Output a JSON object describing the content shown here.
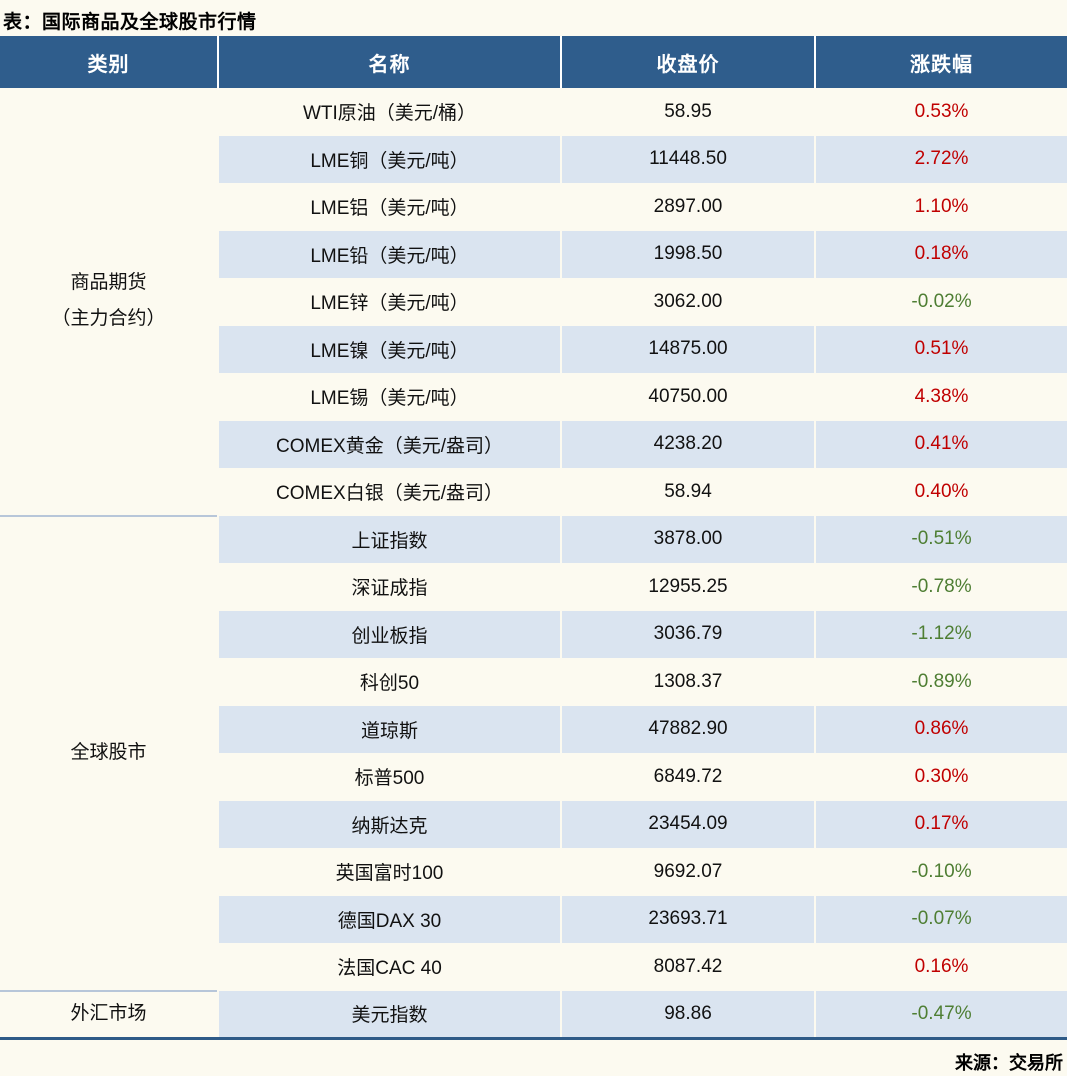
{
  "colors": {
    "page_bg": "#FCFAF0",
    "header_bg": "#2F5D8C",
    "alt_row_bg": "#DAE4F0",
    "up": "#C00000",
    "down": "#4E7E33",
    "table_bottom_border": "#2E5A87"
  },
  "chart_data": {
    "type": "table",
    "title": "表：国际商品及全球股市行情",
    "source": "来源：交易所",
    "columns": [
      "类别",
      "名称",
      "收盘价",
      "涨跌幅"
    ],
    "groups": [
      {
        "category_lines": [
          "商品期货",
          "（主力合约）"
        ],
        "row_count": 9
      },
      {
        "category_lines": [
          "全球股市"
        ],
        "row_count": 10
      },
      {
        "category_lines": [
          "外汇市场"
        ],
        "row_count": 1
      }
    ],
    "rows": [
      {
        "group": "商品期货（主力合约）",
        "name": "WTI原油（美元/桶）",
        "close": "58.95",
        "change": "0.53%",
        "direction": "up"
      },
      {
        "group": "商品期货（主力合约）",
        "name": "LME铜（美元/吨）",
        "close": "11448.50",
        "change": "2.72%",
        "direction": "up"
      },
      {
        "group": "商品期货（主力合约）",
        "name": "LME铝（美元/吨）",
        "close": "2897.00",
        "change": "1.10%",
        "direction": "up"
      },
      {
        "group": "商品期货（主力合约）",
        "name": "LME铅（美元/吨）",
        "close": "1998.50",
        "change": "0.18%",
        "direction": "up"
      },
      {
        "group": "商品期货（主力合约）",
        "name": "LME锌（美元/吨）",
        "close": "3062.00",
        "change": "-0.02%",
        "direction": "down"
      },
      {
        "group": "商品期货（主力合约）",
        "name": "LME镍（美元/吨）",
        "close": "14875.00",
        "change": "0.51%",
        "direction": "up"
      },
      {
        "group": "商品期货（主力合约）",
        "name": "LME锡（美元/吨）",
        "close": "40750.00",
        "change": "4.38%",
        "direction": "up"
      },
      {
        "group": "商品期货（主力合约）",
        "name": "COMEX黄金（美元/盎司）",
        "close": "4238.20",
        "change": "0.41%",
        "direction": "up"
      },
      {
        "group": "商品期货（主力合约）",
        "name": "COMEX白银（美元/盎司）",
        "close": "58.94",
        "change": "0.40%",
        "direction": "up"
      },
      {
        "group": "全球股市",
        "name": "上证指数",
        "close": "3878.00",
        "change": "-0.51%",
        "direction": "down"
      },
      {
        "group": "全球股市",
        "name": "深证成指",
        "close": "12955.25",
        "change": "-0.78%",
        "direction": "down"
      },
      {
        "group": "全球股市",
        "name": "创业板指",
        "close": "3036.79",
        "change": "-1.12%",
        "direction": "down"
      },
      {
        "group": "全球股市",
        "name": "科创50",
        "close": "1308.37",
        "change": "-0.89%",
        "direction": "down"
      },
      {
        "group": "全球股市",
        "name": "道琼斯",
        "close": "47882.90",
        "change": "0.86%",
        "direction": "up"
      },
      {
        "group": "全球股市",
        "name": "标普500",
        "close": "6849.72",
        "change": "0.30%",
        "direction": "up"
      },
      {
        "group": "全球股市",
        "name": "纳斯达克",
        "close": "23454.09",
        "change": "0.17%",
        "direction": "up"
      },
      {
        "group": "全球股市",
        "name": "英国富时100",
        "close": "9692.07",
        "change": "-0.10%",
        "direction": "down"
      },
      {
        "group": "全球股市",
        "name": "德国DAX 30",
        "close": "23693.71",
        "change": "-0.07%",
        "direction": "down"
      },
      {
        "group": "全球股市",
        "name": "法国CAC 40",
        "close": "8087.42",
        "change": "0.16%",
        "direction": "up"
      },
      {
        "group": "外汇市场",
        "name": "美元指数",
        "close": "98.86",
        "change": "-0.47%",
        "direction": "down"
      }
    ]
  }
}
